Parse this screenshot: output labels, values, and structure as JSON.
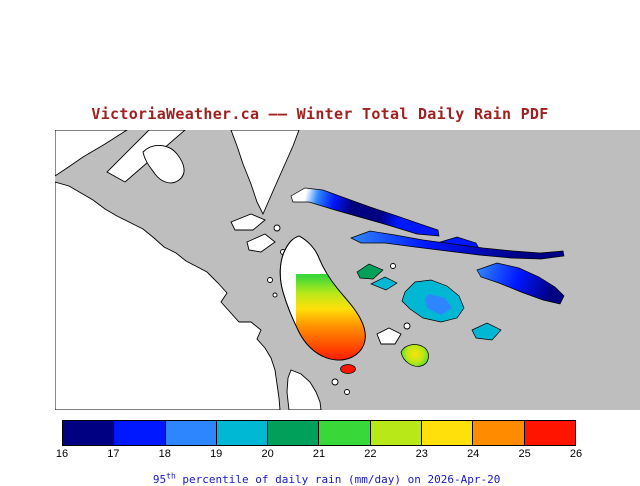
{
  "title": "VictoriaWeather.ca —— Winter Total Daily Rain PDF",
  "colors": {
    "title": "#A02020",
    "caption": "#1818C8"
  },
  "map": {
    "sea_color": "#BEBEBE",
    "land_color": "#FFFFFF"
  },
  "colorbar": {
    "ticks": [
      "16",
      "17",
      "18",
      "19",
      "20",
      "21",
      "22",
      "23",
      "24",
      "25",
      "26"
    ],
    "colors": [
      "#000082",
      "#0018FF",
      "#2E86FF",
      "#00B8D4",
      "#00A05A",
      "#38D838",
      "#B8E818",
      "#FFE00A",
      "#FF8C00",
      "#FF1400"
    ]
  },
  "caption": {
    "value_prefix": "95",
    "superscript": "th",
    "rest": " percentile of daily rain (mm/day) on 2026-Apr-20"
  }
}
